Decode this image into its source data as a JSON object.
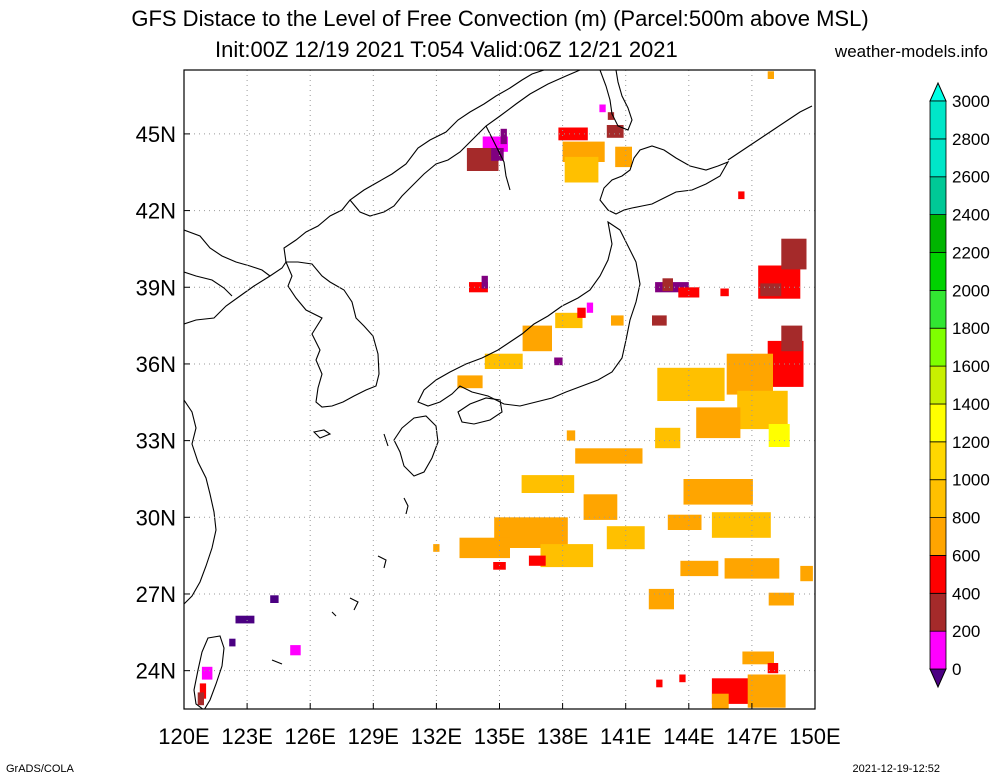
{
  "title": {
    "line1": "GFS Distace to the Level of Free Convection (m) (Parcel:500m above MSL)",
    "line2": "Init:00Z 12/19 2021 T:054 Valid:06Z 12/21 2021",
    "site": "weather-models.info"
  },
  "footer": {
    "left": "GrADS/COLA",
    "right": "2021-12-19-12:52"
  },
  "map": {
    "lon_labels": [
      "120E",
      "123E",
      "126E",
      "129E",
      "132E",
      "135E",
      "138E",
      "141E",
      "144E",
      "147E",
      "150E"
    ],
    "lat_labels": [
      "45N",
      "42N",
      "39N",
      "36N",
      "33N",
      "30N",
      "27N",
      "24N"
    ],
    "lon_range": [
      120,
      150
    ],
    "lat_range": [
      22.5,
      47.5
    ]
  },
  "colorbar": {
    "levels": [
      "0",
      "200",
      "400",
      "600",
      "800",
      "1000",
      "1200",
      "1400",
      "1600",
      "1800",
      "2000",
      "2200",
      "2400",
      "2600",
      "2800",
      "3000"
    ],
    "colors": [
      "#4b0082",
      "#ff00ff",
      "#a52a2a",
      "#ff0000",
      "#ffa500",
      "#ffc000",
      "#ffd700",
      "#ffff00",
      "#c8f000",
      "#7fff00",
      "#32e632",
      "#00d200",
      "#00b400",
      "#00c896",
      "#00e6c8",
      "#00ffe6"
    ]
  },
  "patches": [
    {
      "lon": 134.8,
      "lat": 44.6,
      "w": 1.2,
      "h": 0.6,
      "c": "#ff00ff"
    },
    {
      "lon": 134.2,
      "lat": 44.0,
      "w": 1.5,
      "h": 0.9,
      "c": "#a52a2a"
    },
    {
      "lon": 134.9,
      "lat": 44.2,
      "w": 0.6,
      "h": 0.5,
      "c": "#800080"
    },
    {
      "lon": 135.2,
      "lat": 44.9,
      "w": 0.3,
      "h": 0.6,
      "c": "#800080"
    },
    {
      "lon": 139.0,
      "lat": 44.3,
      "w": 2.0,
      "h": 0.8,
      "c": "#ffa500"
    },
    {
      "lon": 138.5,
      "lat": 45.0,
      "w": 1.4,
      "h": 0.5,
      "c": "#ff0000"
    },
    {
      "lon": 140.5,
      "lat": 45.1,
      "w": 0.8,
      "h": 0.5,
      "c": "#a52a2a"
    },
    {
      "lon": 138.9,
      "lat": 43.6,
      "w": 1.6,
      "h": 1.0,
      "c": "#ffc000"
    },
    {
      "lon": 140.9,
      "lat": 44.1,
      "w": 0.8,
      "h": 0.8,
      "c": "#ffa500"
    },
    {
      "lon": 134.0,
      "lat": 39.0,
      "w": 0.9,
      "h": 0.4,
      "c": "#ff0000"
    },
    {
      "lon": 134.3,
      "lat": 39.2,
      "w": 0.3,
      "h": 0.5,
      "c": "#800080"
    },
    {
      "lon": 138.3,
      "lat": 37.7,
      "w": 1.3,
      "h": 0.6,
      "c": "#ffc000"
    },
    {
      "lon": 136.8,
      "lat": 37.0,
      "w": 1.4,
      "h": 1.0,
      "c": "#ffa500"
    },
    {
      "lon": 135.2,
      "lat": 36.1,
      "w": 1.8,
      "h": 0.6,
      "c": "#ffc000"
    },
    {
      "lon": 133.6,
      "lat": 35.3,
      "w": 1.2,
      "h": 0.5,
      "c": "#ffa500"
    },
    {
      "lon": 138.9,
      "lat": 38.0,
      "w": 0.4,
      "h": 0.4,
      "c": "#ff0000"
    },
    {
      "lon": 139.3,
      "lat": 38.2,
      "w": 0.3,
      "h": 0.4,
      "c": "#ff00ff"
    },
    {
      "lon": 140.6,
      "lat": 37.7,
      "w": 0.6,
      "h": 0.4,
      "c": "#ffa500"
    },
    {
      "lon": 142.6,
      "lat": 37.7,
      "w": 0.7,
      "h": 0.4,
      "c": "#a52a2a"
    },
    {
      "lon": 143.2,
      "lat": 39.0,
      "w": 1.6,
      "h": 0.4,
      "c": "#800080"
    },
    {
      "lon": 144.0,
      "lat": 38.8,
      "w": 1.0,
      "h": 0.4,
      "c": "#ff0000"
    },
    {
      "lon": 143.0,
      "lat": 39.1,
      "w": 0.5,
      "h": 0.5,
      "c": "#a52a2a"
    },
    {
      "lon": 145.7,
      "lat": 38.8,
      "w": 0.4,
      "h": 0.3,
      "c": "#ff0000"
    },
    {
      "lon": 148.3,
      "lat": 39.2,
      "w": 2.0,
      "h": 1.3,
      "c": "#ff0000"
    },
    {
      "lon": 149.0,
      "lat": 40.3,
      "w": 1.2,
      "h": 1.2,
      "c": "#a52a2a"
    },
    {
      "lon": 147.9,
      "lat": 38.9,
      "w": 1.0,
      "h": 0.5,
      "c": "#a52a2a"
    },
    {
      "lon": 148.6,
      "lat": 36.0,
      "w": 1.7,
      "h": 1.8,
      "c": "#ff0000"
    },
    {
      "lon": 148.9,
      "lat": 37.0,
      "w": 1.0,
      "h": 1.0,
      "c": "#a52a2a"
    },
    {
      "lon": 146.9,
      "lat": 35.6,
      "w": 2.2,
      "h": 1.6,
      "c": "#ffa500"
    },
    {
      "lon": 144.1,
      "lat": 35.2,
      "w": 3.2,
      "h": 1.3,
      "c": "#ffc000"
    },
    {
      "lon": 147.5,
      "lat": 34.2,
      "w": 2.4,
      "h": 1.5,
      "c": "#ffc000"
    },
    {
      "lon": 148.3,
      "lat": 33.2,
      "w": 1.0,
      "h": 0.9,
      "c": "#ffff00"
    },
    {
      "lon": 145.4,
      "lat": 33.7,
      "w": 2.1,
      "h": 1.2,
      "c": "#ffa500"
    },
    {
      "lon": 143.0,
      "lat": 33.1,
      "w": 1.2,
      "h": 0.8,
      "c": "#ffc000"
    },
    {
      "lon": 140.2,
      "lat": 32.4,
      "w": 3.2,
      "h": 0.6,
      "c": "#ffa500"
    },
    {
      "lon": 137.3,
      "lat": 31.3,
      "w": 2.5,
      "h": 0.7,
      "c": "#ffc000"
    },
    {
      "lon": 139.8,
      "lat": 30.4,
      "w": 1.6,
      "h": 1.0,
      "c": "#ffa500"
    },
    {
      "lon": 141.0,
      "lat": 29.2,
      "w": 1.8,
      "h": 0.9,
      "c": "#ffc000"
    },
    {
      "lon": 145.4,
      "lat": 31.0,
      "w": 3.3,
      "h": 1.0,
      "c": "#ffa500"
    },
    {
      "lon": 146.5,
      "lat": 29.7,
      "w": 2.8,
      "h": 1.0,
      "c": "#ffc000"
    },
    {
      "lon": 143.8,
      "lat": 29.8,
      "w": 1.6,
      "h": 0.6,
      "c": "#ffa500"
    },
    {
      "lon": 136.5,
      "lat": 29.4,
      "w": 3.5,
      "h": 1.2,
      "c": "#ffa500"
    },
    {
      "lon": 138.2,
      "lat": 28.5,
      "w": 2.5,
      "h": 0.9,
      "c": "#ffc000"
    },
    {
      "lon": 134.3,
      "lat": 28.8,
      "w": 2.4,
      "h": 0.8,
      "c": "#ffa500"
    },
    {
      "lon": 136.8,
      "lat": 28.3,
      "w": 0.8,
      "h": 0.4,
      "c": "#ff0000"
    },
    {
      "lon": 135.0,
      "lat": 28.1,
      "w": 0.6,
      "h": 0.3,
      "c": "#ff0000"
    },
    {
      "lon": 144.5,
      "lat": 28.0,
      "w": 1.8,
      "h": 0.6,
      "c": "#ffa500"
    },
    {
      "lon": 147.0,
      "lat": 28.0,
      "w": 2.6,
      "h": 0.8,
      "c": "#ffa500"
    },
    {
      "lon": 149.6,
      "lat": 27.8,
      "w": 0.6,
      "h": 0.6,
      "c": "#ffa500"
    },
    {
      "lon": 142.7,
      "lat": 26.8,
      "w": 1.2,
      "h": 0.8,
      "c": "#ffa500"
    },
    {
      "lon": 148.4,
      "lat": 26.8,
      "w": 1.2,
      "h": 0.5,
      "c": "#ffa500"
    },
    {
      "lon": 146.0,
      "lat": 23.2,
      "w": 1.8,
      "h": 1.0,
      "c": "#ff0000"
    },
    {
      "lon": 147.7,
      "lat": 23.2,
      "w": 1.8,
      "h": 1.3,
      "c": "#ffa500"
    },
    {
      "lon": 147.3,
      "lat": 24.5,
      "w": 1.5,
      "h": 0.5,
      "c": "#ffa500"
    },
    {
      "lon": 145.5,
      "lat": 22.8,
      "w": 0.8,
      "h": 0.6,
      "c": "#ffa500"
    },
    {
      "lon": 148.0,
      "lat": 24.1,
      "w": 0.5,
      "h": 0.4,
      "c": "#ff0000"
    },
    {
      "lon": 142.6,
      "lat": 23.5,
      "w": 0.3,
      "h": 0.3,
      "c": "#ff0000"
    },
    {
      "lon": 143.7,
      "lat": 23.7,
      "w": 0.3,
      "h": 0.3,
      "c": "#ff0000"
    },
    {
      "lon": 138.4,
      "lat": 33.2,
      "w": 0.4,
      "h": 0.4,
      "c": "#ffa500"
    },
    {
      "lon": 132.0,
      "lat": 28.8,
      "w": 0.3,
      "h": 0.3,
      "c": "#ffa500"
    },
    {
      "lon": 122.9,
      "lat": 26.0,
      "w": 0.9,
      "h": 0.3,
      "c": "#4b0082"
    },
    {
      "lon": 124.3,
      "lat": 26.8,
      "w": 0.4,
      "h": 0.3,
      "c": "#4b0082"
    },
    {
      "lon": 125.3,
      "lat": 24.8,
      "w": 0.5,
      "h": 0.4,
      "c": "#ff00ff"
    },
    {
      "lon": 121.1,
      "lat": 23.9,
      "w": 0.5,
      "h": 0.5,
      "c": "#ff00ff"
    },
    {
      "lon": 120.9,
      "lat": 23.2,
      "w": 0.3,
      "h": 0.6,
      "c": "#ff0000"
    },
    {
      "lon": 120.8,
      "lat": 22.9,
      "w": 0.3,
      "h": 0.5,
      "c": "#a52a2a"
    },
    {
      "lon": 122.3,
      "lat": 25.1,
      "w": 0.3,
      "h": 0.3,
      "c": "#4b0082"
    },
    {
      "lon": 137.8,
      "lat": 36.1,
      "w": 0.4,
      "h": 0.3,
      "c": "#800080"
    },
    {
      "lon": 139.9,
      "lat": 46.0,
      "w": 0.3,
      "h": 0.3,
      "c": "#ff00ff"
    },
    {
      "lon": 140.3,
      "lat": 45.7,
      "w": 0.3,
      "h": 0.3,
      "c": "#a52a2a"
    },
    {
      "lon": 146.5,
      "lat": 42.6,
      "w": 0.3,
      "h": 0.3,
      "c": "#ff0000"
    },
    {
      "lon": 147.9,
      "lat": 47.3,
      "w": 0.3,
      "h": 0.3,
      "c": "#ffa500"
    }
  ]
}
